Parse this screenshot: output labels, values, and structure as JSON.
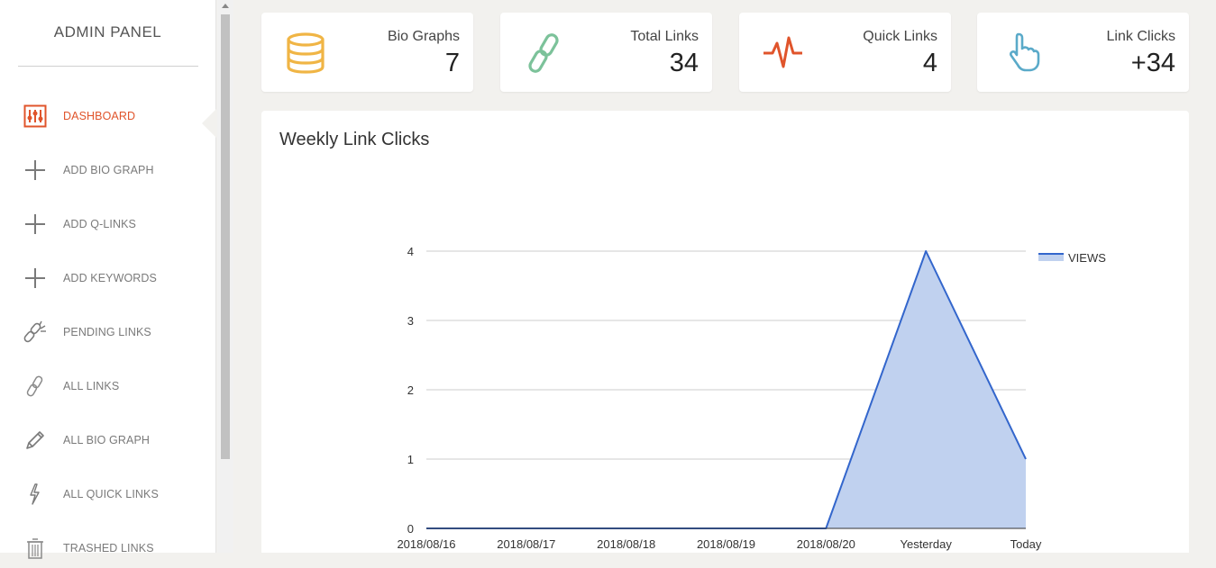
{
  "sidebar": {
    "title": "ADMIN PANEL",
    "items": [
      {
        "label": "DASHBOARD",
        "icon": "sliders-icon",
        "active": true
      },
      {
        "label": "ADD BIO GRAPH",
        "icon": "plus-icon",
        "active": false
      },
      {
        "label": "ADD Q-LINKS",
        "icon": "plus-icon",
        "active": false
      },
      {
        "label": "ADD KEYWORDS",
        "icon": "plus-icon",
        "active": false
      },
      {
        "label": "PENDING LINKS",
        "icon": "broken-link-icon",
        "active": false
      },
      {
        "label": "ALL LINKS",
        "icon": "link-icon",
        "active": false
      },
      {
        "label": "ALL BIO GRAPH",
        "icon": "pencil-icon",
        "active": false
      },
      {
        "label": "ALL QUICK LINKS",
        "icon": "bolt-icon",
        "active": false
      },
      {
        "label": "TRASHED LINKS",
        "icon": "trash-icon",
        "active": false
      }
    ]
  },
  "cards": [
    {
      "label": "Bio Graphs",
      "value": "7",
      "icon": "database-icon",
      "color": "#f0b545"
    },
    {
      "label": "Total Links",
      "value": "34",
      "icon": "link-icon",
      "color": "#7cc29a"
    },
    {
      "label": "Quick Links",
      "value": "4",
      "icon": "pulse-icon",
      "color": "#e0542b"
    },
    {
      "label": "Link Clicks",
      "value": "+34",
      "icon": "pointer-hand-icon",
      "color": "#5aaac9"
    }
  ],
  "panel": {
    "title": "Weekly Link Clicks"
  },
  "colors": {
    "accent": "#e0542b",
    "series_line": "#3366cc",
    "series_fill": "#c0d1ef"
  },
  "chart_data": {
    "type": "area",
    "categories": [
      "2018/08/16",
      "2018/08/17",
      "2018/08/18",
      "2018/08/19",
      "2018/08/20",
      "Yesterday",
      "Today"
    ],
    "series": [
      {
        "name": "VIEWS",
        "values": [
          0,
          0,
          0,
          0,
          0,
          4,
          1
        ]
      }
    ],
    "ylim": [
      0,
      4
    ],
    "yticks": [
      0,
      1,
      2,
      3,
      4
    ],
    "legend": "right",
    "grid": true
  }
}
